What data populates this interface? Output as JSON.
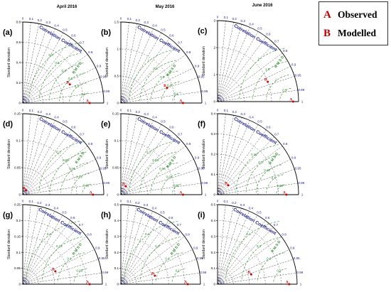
{
  "figure": {
    "column_titles": [
      "April 2016",
      "May 2016",
      "June 2016"
    ],
    "legend": [
      {
        "letter": "A",
        "label": "Observed"
      },
      {
        "letter": "B",
        "label": "Modelled"
      }
    ],
    "colors": {
      "axis": "#000000",
      "correlation_lines": "#555555",
      "rms_arcs": "#2e8b2e",
      "std_arcs": "#555555",
      "arc_text": "#1a1a8c",
      "point": "#cc0000",
      "label_text": "#000000"
    }
  },
  "chart_data": [
    {
      "type": "taylor_diagram",
      "panel": "(a)",
      "column": "April 2016",
      "ylabel": "Standard deviation",
      "arc_label": "Correlation Coefficient",
      "rms_label": "RMSD",
      "std_max": 0.8,
      "std_ticks": [
        0,
        0.2,
        0.4,
        0.6,
        0.8
      ],
      "correlation_ticks": [
        0,
        0.1,
        0.2,
        0.3,
        0.4,
        0.5,
        0.6,
        0.7,
        0.8,
        0.9,
        0.95,
        0.99,
        1
      ],
      "rms_ticks": [
        0.1,
        0.2,
        0.3,
        0.4,
        0.5,
        0.6
      ],
      "points": [
        {
          "label": "A",
          "name": "Observed",
          "std": 0.66,
          "correlation": 1.0
        },
        {
          "label": "B",
          "name": "Modelled",
          "std": 0.5,
          "correlation": 0.93
        }
      ]
    },
    {
      "type": "taylor_diagram",
      "panel": "(b)",
      "column": "May 2016",
      "ylabel": "Standard deviation",
      "arc_label": "Correlation Coefficient",
      "rms_label": "RMSD",
      "std_max": 1.5,
      "std_ticks": [
        0,
        0.5,
        1,
        1.5
      ],
      "correlation_ticks": [
        0,
        0.1,
        0.2,
        0.3,
        0.4,
        0.5,
        0.6,
        0.7,
        0.8,
        0.9,
        0.95,
        0.99,
        1
      ],
      "rms_ticks": [
        0.2,
        0.4,
        0.6,
        0.8,
        1
      ],
      "points": [
        {
          "label": "A",
          "name": "Observed",
          "std": 1.15,
          "correlation": 1.0
        },
        {
          "label": "B",
          "name": "Modelled",
          "std": 0.9,
          "correlation": 0.95
        }
      ]
    },
    {
      "type": "taylor_diagram",
      "panel": "(c)",
      "column": "June 2016",
      "ylabel": "Standard deviation",
      "arc_label": "Correlation Coefficient",
      "rms_label": "RMSD",
      "std_max": 3,
      "std_ticks": [
        0,
        1,
        2,
        3
      ],
      "correlation_ticks": [
        0,
        0.1,
        0.2,
        0.3,
        0.4,
        0.5,
        0.6,
        0.7,
        0.8,
        0.9,
        0.95,
        0.99,
        1
      ],
      "rms_ticks": [
        0.5,
        1,
        1.5,
        2
      ],
      "points": [
        {
          "label": "A",
          "name": "Observed",
          "std": 2.8,
          "correlation": 1.0
        },
        {
          "label": "B",
          "name": "Modelled",
          "std": 2.0,
          "correlation": 0.93
        }
      ]
    },
    {
      "type": "taylor_diagram",
      "panel": "(d)",
      "column": "April 2016",
      "ylabel": "Standard deviation",
      "arc_label": "Correlation Coefficient",
      "rms_label": "RMSD",
      "std_max": 0.15,
      "std_ticks": [
        0,
        0.05,
        0.1,
        0.15
      ],
      "correlation_ticks": [
        0,
        0.1,
        0.2,
        0.3,
        0.4,
        0.5,
        0.6,
        0.7,
        0.8,
        0.9,
        0.95,
        0.99,
        1
      ],
      "rms_ticks": [
        0.02,
        0.04,
        0.06,
        0.08,
        0.1
      ],
      "points": [
        {
          "label": "A",
          "name": "Observed",
          "std": 0.13,
          "correlation": 1.0
        },
        {
          "label": "B",
          "name": "Modelled",
          "std": 0.01,
          "correlation": 0.6
        }
      ]
    },
    {
      "type": "taylor_diagram",
      "panel": "(e)",
      "column": "May 2016",
      "ylabel": "Standard deviation",
      "arc_label": "Correlation Coefficient",
      "rms_label": "RMSD",
      "std_max": 0.15,
      "std_ticks": [
        0,
        0.05,
        0.1,
        0.15
      ],
      "correlation_ticks": [
        0,
        0.1,
        0.2,
        0.3,
        0.4,
        0.5,
        0.6,
        0.7,
        0.8,
        0.9,
        0.95,
        0.99,
        1
      ],
      "rms_ticks": [
        0.02,
        0.04,
        0.06,
        0.08,
        0.1
      ],
      "points": [
        {
          "label": "A",
          "name": "Observed",
          "std": 0.115,
          "correlation": 1.0
        },
        {
          "label": "B",
          "name": "Modelled",
          "std": 0.018,
          "correlation": 0.5
        }
      ]
    },
    {
      "type": "taylor_diagram",
      "panel": "(f)",
      "column": "June 2016",
      "ylabel": "Standard deviation",
      "arc_label": "Correlation Coefficient",
      "rms_label": "RMSD",
      "std_max": 0.4,
      "std_ticks": [
        0,
        0.1,
        0.2,
        0.3,
        0.4
      ],
      "correlation_ticks": [
        0,
        0.1,
        0.2,
        0.3,
        0.4,
        0.5,
        0.6,
        0.7,
        0.8,
        0.9,
        0.95,
        0.99,
        1
      ],
      "rms_ticks": [
        0.05,
        0.1,
        0.15,
        0.2,
        0.25
      ],
      "points": [
        {
          "label": "A",
          "name": "Observed",
          "std": 0.34,
          "correlation": 1.0
        },
        {
          "label": "B",
          "name": "Modelled",
          "std": 0.07,
          "correlation": 0.75
        }
      ]
    },
    {
      "type": "taylor_diagram",
      "panel": "(g)",
      "column": "April 2016",
      "ylabel": "Standard deviation",
      "arc_label": "Correlation Coefficient",
      "rms_label": "RMSD",
      "std_max": 0.25,
      "std_ticks": [
        0,
        0.05,
        0.1,
        0.15,
        0.2,
        0.25
      ],
      "correlation_ticks": [
        0,
        0.1,
        0.2,
        0.3,
        0.4,
        0.5,
        0.6,
        0.7,
        0.8,
        0.9,
        0.95,
        0.99,
        1
      ],
      "rms_ticks": [
        0.05,
        0.1,
        0.15,
        0.2
      ],
      "points": [
        {
          "label": "A",
          "name": "Observed",
          "std": 0.21,
          "correlation": 1.0
        },
        {
          "label": "B",
          "name": "Modelled",
          "std": 0.11,
          "correlation": 0.93
        }
      ]
    },
    {
      "type": "taylor_diagram",
      "panel": "(h)",
      "column": "May 2016",
      "ylabel": "Standard deviation",
      "arc_label": "Correlation Coefficient",
      "rms_label": "RMSD",
      "std_max": 0.5,
      "std_ticks": [
        0,
        0.1,
        0.2,
        0.3,
        0.4,
        0.5
      ],
      "correlation_ticks": [
        0,
        0.1,
        0.2,
        0.3,
        0.4,
        0.5,
        0.6,
        0.7,
        0.8,
        0.9,
        0.95,
        0.99,
        1
      ],
      "rms_ticks": [
        0.1,
        0.2,
        0.3,
        0.4
      ],
      "points": [
        {
          "label": "A",
          "name": "Observed",
          "std": 0.42,
          "correlation": 1.0
        },
        {
          "label": "B",
          "name": "Modelled",
          "std": 0.22,
          "correlation": 0.97
        }
      ]
    },
    {
      "type": "taylor_diagram",
      "panel": "(i)",
      "column": "June 2016",
      "ylabel": "Standard deviation",
      "arc_label": "Correlation Coefficient",
      "rms_label": "RMSD",
      "std_max": 0.5,
      "std_ticks": [
        0,
        0.1,
        0.2,
        0.3,
        0.4,
        0.5
      ],
      "correlation_ticks": [
        0,
        0.1,
        0.2,
        0.3,
        0.4,
        0.5,
        0.6,
        0.7,
        0.8,
        0.9,
        0.95,
        0.99,
        1
      ],
      "rms_ticks": [
        0.1,
        0.2,
        0.3,
        0.4
      ],
      "points": [
        {
          "label": "A",
          "name": "Observed",
          "std": 0.45,
          "correlation": 1.0
        },
        {
          "label": "B",
          "name": "Modelled",
          "std": 0.22,
          "correlation": 0.96
        }
      ]
    }
  ]
}
